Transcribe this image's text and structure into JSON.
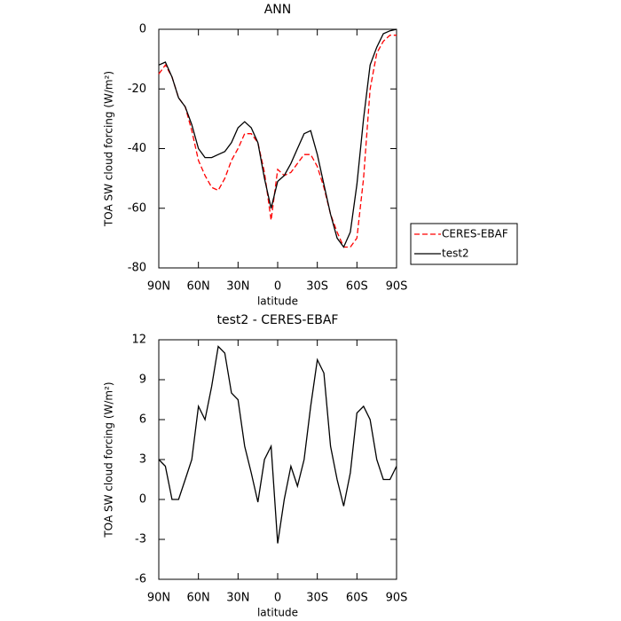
{
  "chart_data": [
    {
      "type": "line",
      "title": "ANN",
      "x_label": "latitude",
      "y_label": "TOA SW cloud forcing (W/m²)",
      "x": [
        90,
        85,
        80,
        75,
        70,
        65,
        60,
        55,
        50,
        45,
        40,
        35,
        30,
        25,
        20,
        15,
        10,
        5,
        0,
        -5,
        -10,
        -15,
        -20,
        -25,
        -30,
        -35,
        -40,
        -45,
        -50,
        -55,
        -60,
        -65,
        -70,
        -75,
        -80,
        -85,
        -90
      ],
      "series": [
        {
          "name": "CERES-EBAF",
          "color": "#ff0000",
          "line_style": "dashed",
          "values": [
            -15,
            -12,
            -16,
            -23,
            -26,
            -34,
            -44,
            -49,
            -53,
            -54,
            -50,
            -44,
            -40,
            -35,
            -35,
            -38,
            -48,
            -64,
            -47,
            -49,
            -48,
            -45,
            -42,
            -42,
            -46,
            -53,
            -62,
            -68,
            -73,
            -73,
            -70,
            -50,
            -20,
            -8,
            -4,
            -2,
            -2
          ]
        },
        {
          "name": "test2",
          "color": "#000000",
          "line_style": "solid",
          "values": [
            -12,
            -11,
            -16,
            -23,
            -26,
            -32,
            -40,
            -43,
            -43,
            -42,
            -41,
            -38,
            -33,
            -31,
            -33,
            -38,
            -50,
            -60,
            -51,
            -49,
            -45,
            -40,
            -35,
            -34,
            -42,
            -52,
            -62,
            -70,
            -73,
            -68,
            -52,
            -30,
            -12,
            -6,
            -1.5,
            -0.5,
            0
          ]
        }
      ],
      "xlim": [
        90,
        -90
      ],
      "xticks": [
        {
          "value": 90,
          "label": "90N"
        },
        {
          "value": 60,
          "label": "60N"
        },
        {
          "value": 30,
          "label": "30N"
        },
        0,
        {
          "value": -30,
          "label": "30S"
        },
        {
          "value": -60,
          "label": "60S"
        },
        {
          "value": -90,
          "label": "90S"
        }
      ],
      "ylim": [
        -80,
        0
      ],
      "yticks": [
        -80,
        -60,
        -40,
        -20,
        0
      ],
      "legend": "right"
    },
    {
      "type": "line",
      "title": "test2 - CERES-EBAF",
      "x_label": "latitude",
      "y_label": "TOA SW cloud forcing (W/m²)",
      "x": [
        90,
        85,
        80,
        75,
        70,
        65,
        60,
        55,
        50,
        45,
        40,
        35,
        30,
        25,
        20,
        15,
        10,
        5,
        0,
        -5,
        -10,
        -15,
        -20,
        -25,
        -30,
        -35,
        -40,
        -45,
        -50,
        -55,
        -60,
        -65,
        -70,
        -75,
        -80,
        -85,
        -90
      ],
      "values": [
        3.0,
        2.5,
        0.0,
        0.0,
        1.5,
        3.0,
        7.0,
        6.0,
        8.5,
        11.5,
        11.0,
        8.0,
        7.5,
        4.0,
        2.0,
        -0.2,
        3.0,
        4.0,
        -3.3,
        0.0,
        2.5,
        1.0,
        3.0,
        7.0,
        10.5,
        9.5,
        4.0,
        1.5,
        -0.5,
        2.0,
        6.5,
        7.0,
        6.0,
        3.0,
        1.5,
        1.5,
        2.5
      ],
      "color": "#000000",
      "xlim": [
        90,
        -90
      ],
      "xticks": [
        {
          "value": 90,
          "label": "90N"
        },
        {
          "value": 60,
          "label": "60N"
        },
        {
          "value": 30,
          "label": "30N"
        },
        0,
        {
          "value": -30,
          "label": "30S"
        },
        {
          "value": -60,
          "label": "60S"
        },
        {
          "value": -90,
          "label": "90S"
        }
      ],
      "ylim": [
        -6,
        12
      ],
      "yticks": [
        -6,
        -3,
        0,
        3,
        6,
        9,
        12
      ]
    }
  ]
}
